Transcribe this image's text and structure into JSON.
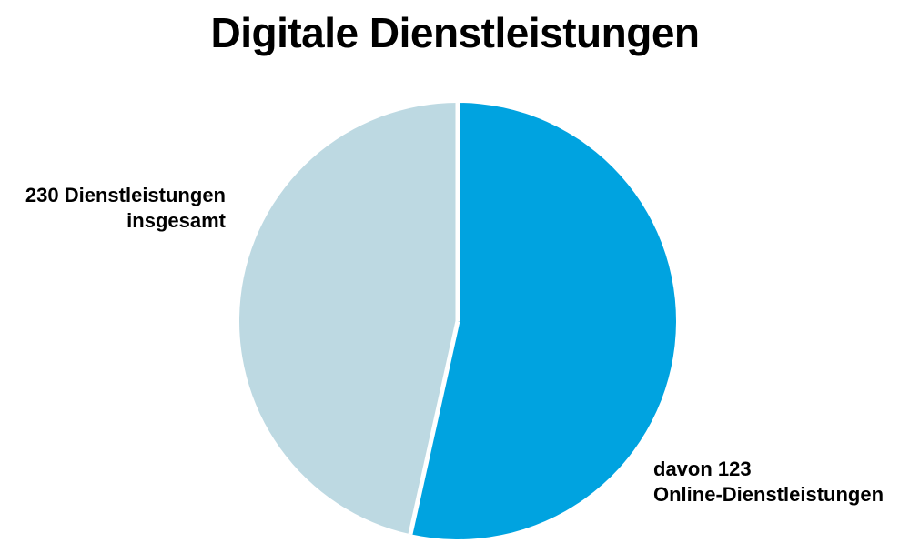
{
  "title": "Digitale Dienstleistungen",
  "colors": {
    "total": "#bdd9e2",
    "online": "#00a3e0",
    "separator": "#ffffff"
  },
  "chart_data": {
    "type": "pie",
    "title": "Digitale Dienstleistungen",
    "total": 230,
    "slices": [
      {
        "value": 123,
        "label_line1": "davon 123",
        "label_line2": "Online-Dienstleistungen",
        "color": "#00a3e0"
      },
      {
        "value": 107,
        "label_line1": "230 Dienstleistungen",
        "label_line2": "insgesamt",
        "color": "#bdd9e2"
      }
    ]
  }
}
